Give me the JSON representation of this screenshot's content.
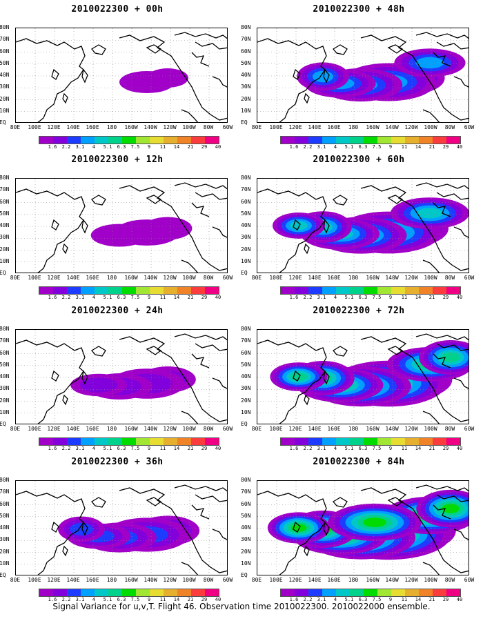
{
  "figure": {
    "caption": "Signal Variance for u,v,T. Flight 46. Observation time 2010022300. 2010022000 ensemble."
  },
  "map_axes": {
    "lon_labels": [
      "80E",
      "100E",
      "120E",
      "140E",
      "160E",
      "180",
      "160W",
      "140W",
      "120W",
      "100W",
      "80W",
      "60W"
    ],
    "lat_labels": [
      "80N",
      "70N",
      "60N",
      "50N",
      "40N",
      "30N",
      "20N",
      "10N",
      "EQ"
    ],
    "lon_range_deg_east": [
      80,
      300
    ],
    "lat_range_deg": [
      0,
      80
    ],
    "grid": "dotted"
  },
  "colorbar": {
    "labels": [
      "1.6",
      "2.2",
      "3.1",
      "4",
      "5.1",
      "6.3",
      "7.5",
      "9",
      "11",
      "14",
      "21",
      "29",
      "40"
    ],
    "colors": [
      "#a000c8",
      "#8200dc",
      "#1e3cff",
      "#00a0ff",
      "#00c8c8",
      "#00d28c",
      "#00dc00",
      "#a0e632",
      "#e6dc32",
      "#e6af2d",
      "#f08228",
      "#fa3c3c",
      "#f00082"
    ]
  },
  "panels": [
    {
      "title": "2010022300 + 00h",
      "intensity": 0
    },
    {
      "title": "2010022300 + 12h",
      "intensity": 1
    },
    {
      "title": "2010022300 + 24h",
      "intensity": 2
    },
    {
      "title": "2010022300 + 36h",
      "intensity": 3
    },
    {
      "title": "2010022300 + 48h",
      "intensity": 4
    },
    {
      "title": "2010022300 + 60h",
      "intensity": 5
    },
    {
      "title": "2010022300 + 72h",
      "intensity": 6
    },
    {
      "title": "2010022300 + 84h",
      "intensity": 7
    }
  ]
}
